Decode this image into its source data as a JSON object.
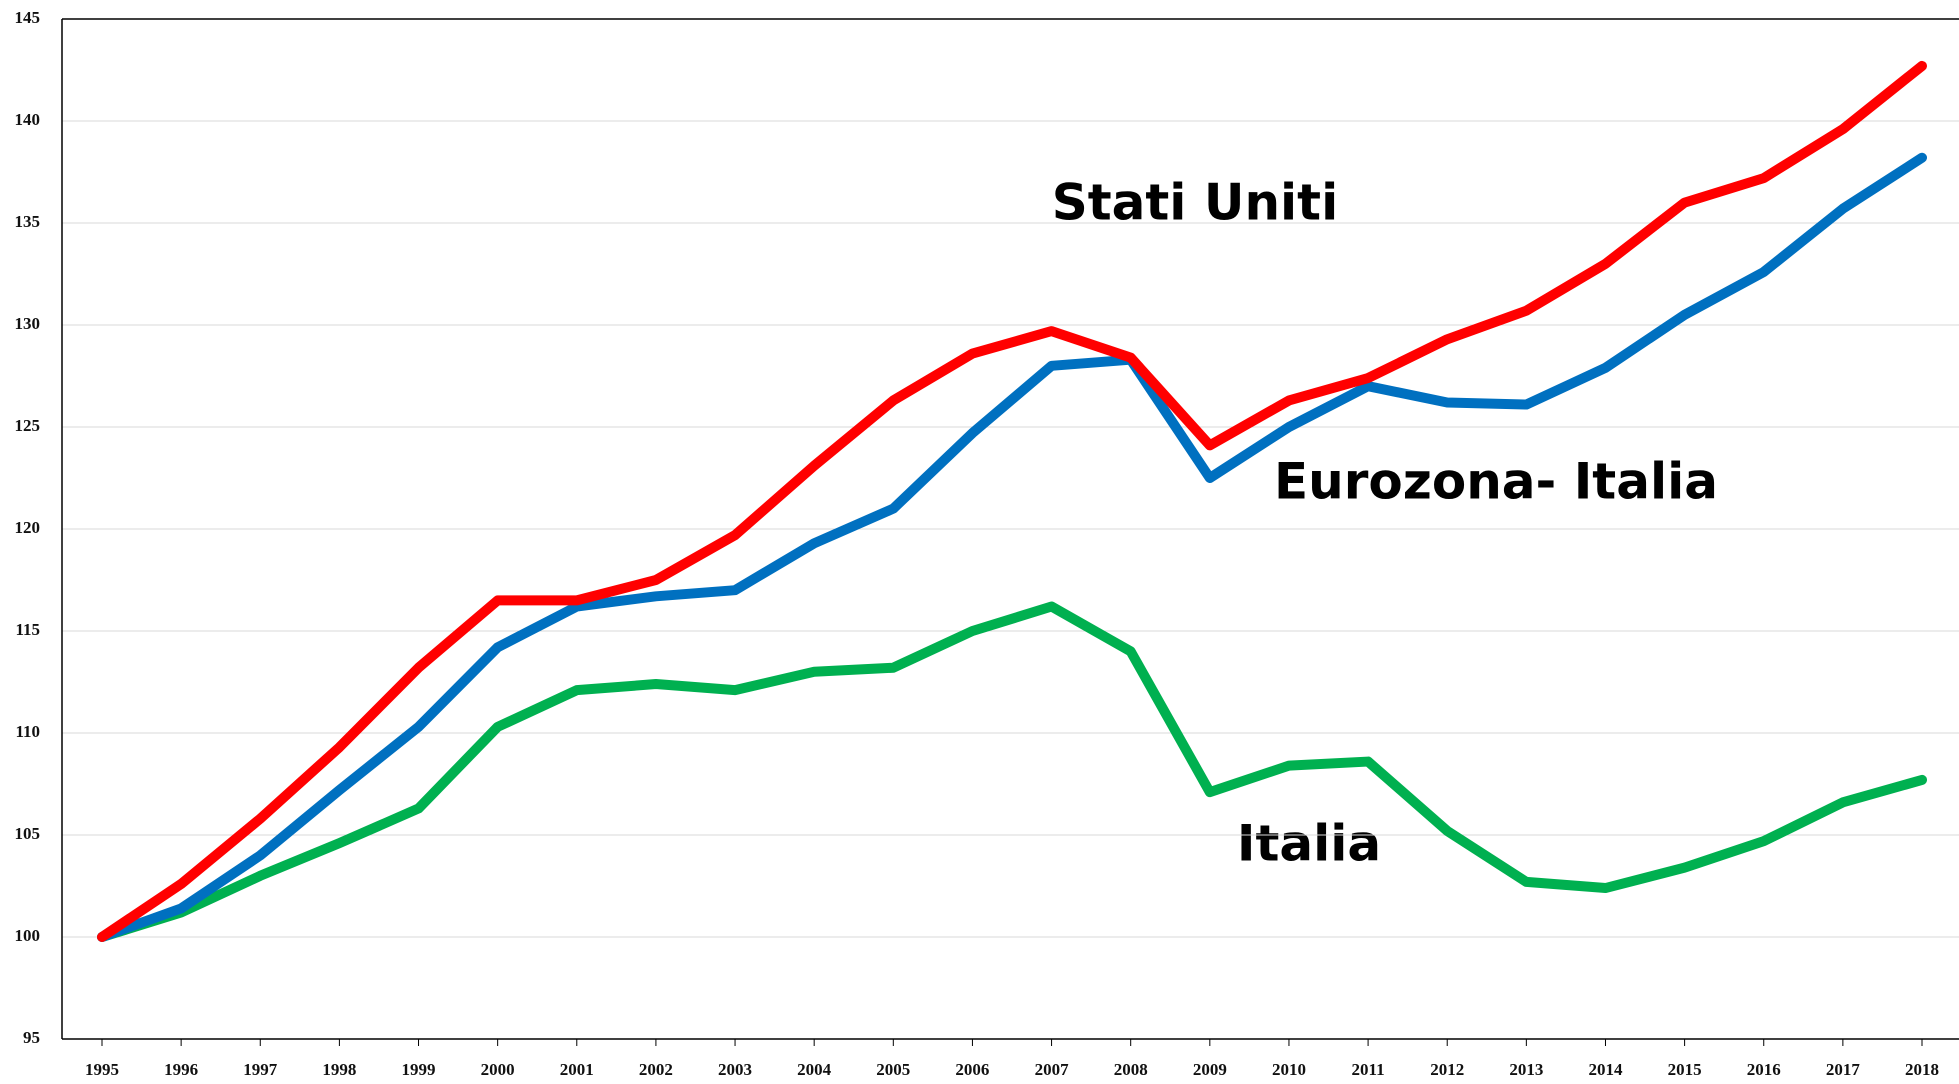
{
  "chart_data": {
    "type": "line",
    "x": [
      1995,
      1996,
      1997,
      1998,
      1999,
      2000,
      2001,
      2002,
      2003,
      2004,
      2005,
      2006,
      2007,
      2008,
      2009,
      2010,
      2011,
      2012,
      2013,
      2014,
      2015,
      2016,
      2017,
      2018
    ],
    "series": [
      {
        "name": "Stati Uniti",
        "color": "#ff0000",
        "values": [
          100,
          102.6,
          105.8,
          109.3,
          113.2,
          116.5,
          116.5,
          117.5,
          119.7,
          123.1,
          126.3,
          128.6,
          129.7,
          128.4,
          124.1,
          126.3,
          127.4,
          129.3,
          130.7,
          133.0,
          136.0,
          137.2,
          139.6,
          142.7
        ]
      },
      {
        "name": "Eurozona- Italia",
        "color": "#0070c0",
        "values": [
          100,
          101.4,
          104.0,
          107.2,
          110.3,
          114.2,
          116.2,
          116.7,
          117.0,
          119.3,
          121.0,
          124.7,
          128.0,
          128.3,
          122.5,
          125.0,
          127.0,
          126.2,
          126.1,
          127.9,
          130.5,
          132.6,
          135.7,
          138.2
        ]
      },
      {
        "name": "Italia",
        "color": "#00b050",
        "values": [
          100,
          101.2,
          103.0,
          104.6,
          106.3,
          110.3,
          112.1,
          112.4,
          112.1,
          113.0,
          113.2,
          115.0,
          116.2,
          114.0,
          107.1,
          108.4,
          108.6,
          105.2,
          102.7,
          102.4,
          103.4,
          104.7,
          106.6,
          107.7
        ]
      }
    ],
    "xlim": [
      1995,
      2018
    ],
    "xticks": [
      1995,
      1996,
      1997,
      1998,
      1999,
      2000,
      2001,
      2002,
      2003,
      2004,
      2005,
      2006,
      2007,
      2008,
      2009,
      2010,
      2011,
      2012,
      2013,
      2014,
      2015,
      2016,
      2017,
      2018
    ],
    "ylim": [
      95,
      145
    ],
    "yticks": [
      95,
      100,
      105,
      110,
      115,
      120,
      125,
      130,
      135,
      140,
      145
    ],
    "grid": true
  }
}
